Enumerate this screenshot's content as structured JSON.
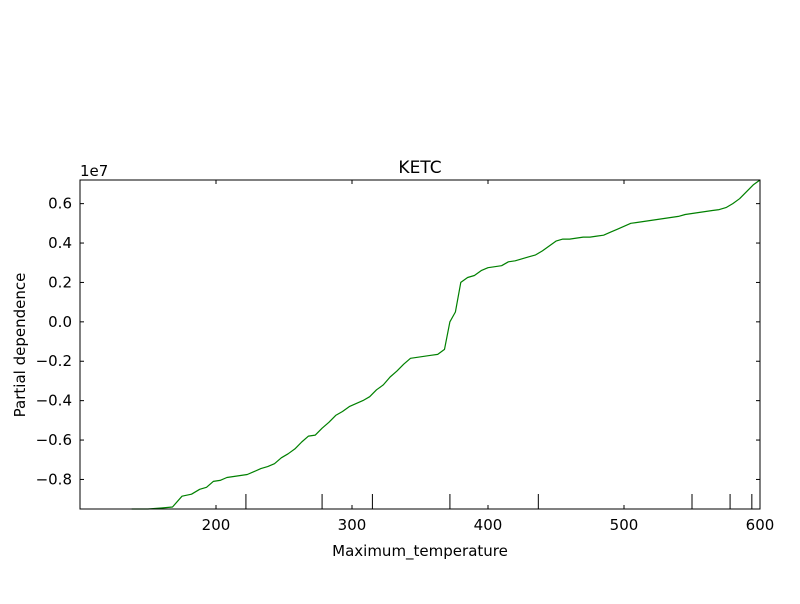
{
  "chart_data": {
    "type": "line",
    "title": "KETC",
    "xlabel": "Maximum_temperature",
    "ylabel": "Partial dependence",
    "y_offset_label": "1e7",
    "y_scale": 10000000,
    "xlim": [
      100,
      600
    ],
    "ylim": [
      -0.95,
      0.72
    ],
    "x_ticks": [
      200,
      300,
      400,
      500,
      600
    ],
    "y_ticks": [
      -0.8,
      -0.6,
      -0.4,
      -0.2,
      0.0,
      0.2,
      0.4,
      0.6
    ],
    "y_tick_labels": [
      "−0.8",
      "−0.6",
      "−0.4",
      "−0.2",
      "0.0",
      "0.2",
      "0.4",
      "0.6"
    ],
    "rug_x": [
      222,
      278,
      315,
      372,
      437,
      550,
      578,
      594
    ],
    "grid": false,
    "series": [
      {
        "color": "#008000",
        "x": [
          138,
          150,
          160,
          168,
          175,
          182,
          188,
          193,
          198,
          203,
          208,
          213,
          218,
          223,
          228,
          233,
          238,
          243,
          248,
          253,
          258,
          263,
          268,
          273,
          278,
          283,
          288,
          293,
          298,
          303,
          308,
          313,
          318,
          323,
          328,
          333,
          338,
          343,
          348,
          353,
          358,
          363,
          368,
          372,
          376,
          380,
          385,
          390,
          395,
          400,
          405,
          410,
          415,
          420,
          425,
          430,
          435,
          440,
          445,
          450,
          455,
          460,
          465,
          470,
          475,
          480,
          485,
          490,
          495,
          500,
          505,
          510,
          515,
          520,
          525,
          530,
          535,
          540,
          545,
          550,
          555,
          560,
          565,
          570,
          575,
          580,
          585,
          590,
          595,
          600
        ],
        "y": [
          -0.95,
          -0.95,
          -0.945,
          -0.94,
          -0.885,
          -0.875,
          -0.85,
          -0.84,
          -0.81,
          -0.805,
          -0.79,
          -0.785,
          -0.78,
          -0.775,
          -0.76,
          -0.745,
          -0.735,
          -0.72,
          -0.69,
          -0.67,
          -0.645,
          -0.61,
          -0.58,
          -0.575,
          -0.54,
          -0.51,
          -0.475,
          -0.455,
          -0.43,
          -0.415,
          -0.4,
          -0.38,
          -0.345,
          -0.32,
          -0.28,
          -0.25,
          -0.215,
          -0.185,
          -0.18,
          -0.175,
          -0.17,
          -0.165,
          -0.14,
          0.0,
          0.05,
          0.2,
          0.225,
          0.235,
          0.26,
          0.275,
          0.28,
          0.285,
          0.305,
          0.31,
          0.32,
          0.33,
          0.34,
          0.36,
          0.385,
          0.41,
          0.42,
          0.42,
          0.425,
          0.43,
          0.43,
          0.435,
          0.44,
          0.455,
          0.47,
          0.485,
          0.5,
          0.505,
          0.51,
          0.515,
          0.52,
          0.525,
          0.53,
          0.535,
          0.545,
          0.55,
          0.555,
          0.56,
          0.565,
          0.57,
          0.58,
          0.6,
          0.625,
          0.66,
          0.695,
          0.72
        ]
      }
    ]
  }
}
